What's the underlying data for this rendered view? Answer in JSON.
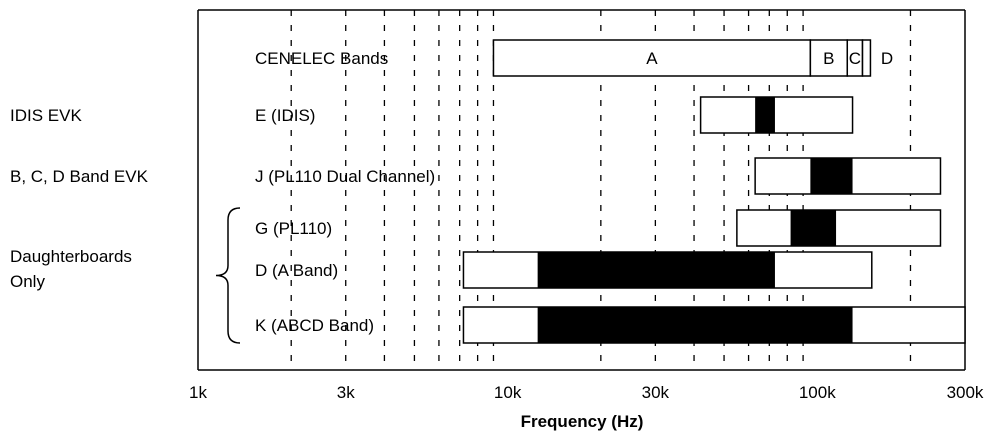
{
  "chart_data": {
    "type": "bar",
    "xscale": "log",
    "xlim": [
      1000,
      300000
    ],
    "xlabel": "Frequency (Hz)",
    "xticks": [
      {
        "value": 1000,
        "label": "1k"
      },
      {
        "value": 3000,
        "label": "3k"
      },
      {
        "value": 10000,
        "label": "10k"
      },
      {
        "value": 30000,
        "label": "30k"
      },
      {
        "value": 100000,
        "label": "100k"
      },
      {
        "value": 300000,
        "label": "300k"
      }
    ],
    "gridlines": [
      2000,
      3000,
      4000,
      5000,
      6000,
      7000,
      8000,
      9000,
      20000,
      30000,
      40000,
      50000,
      60000,
      70000,
      80000,
      90000,
      200000
    ],
    "cenelec": {
      "label": "CENELEC Bands",
      "bands": [
        {
          "name": "A",
          "from": 9000,
          "to": 95000
        },
        {
          "name": "B",
          "from": 95000,
          "to": 125000
        },
        {
          "name": "C",
          "from": 125000,
          "to": 140000
        },
        {
          "name": "D",
          "from": 140000,
          "to": 148500
        }
      ]
    },
    "rows": [
      {
        "name": "E (IDIS)",
        "range": [
          42000,
          130000
        ],
        "filled": [
          63000,
          73000
        ]
      },
      {
        "name": "J (PL110 Dual Channel)",
        "range": [
          63000,
          250000
        ],
        "filled": [
          95000,
          130000
        ]
      },
      {
        "name": "G (PL110)",
        "range": [
          55000,
          250000
        ],
        "filled": [
          82000,
          115000
        ]
      },
      {
        "name": "D (A Band)",
        "range": [
          7200,
          150000
        ],
        "filled": [
          12500,
          73000
        ]
      },
      {
        "name": "K (ABCD Band)",
        "range": [
          7200,
          300000
        ],
        "filled": [
          12500,
          130000
        ]
      }
    ],
    "group_labels": [
      {
        "text": "IDIS EVK",
        "row": 0
      },
      {
        "text": "B, C, D Band EVK",
        "row": 1
      }
    ],
    "brace_group": {
      "lines": [
        "Daughterboards",
        "Only"
      ],
      "rows": [
        2,
        4
      ]
    }
  }
}
